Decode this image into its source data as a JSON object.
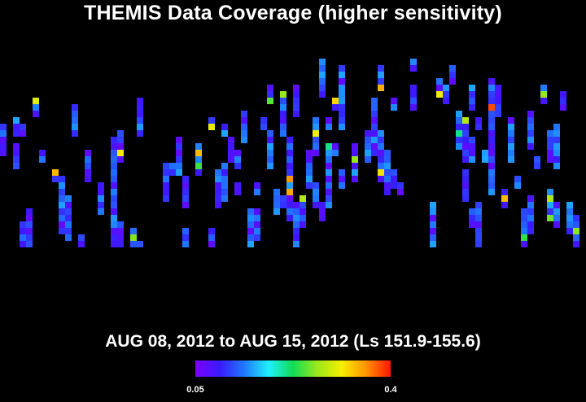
{
  "title": "THEMIS Data Coverage (higher sensitivity)",
  "subtitle": "AUG 08, 2012 to AUG 15, 2012 (Ls 151.9-155.6)",
  "colorbar": {
    "min_label": "0.05",
    "max_label": "0.4",
    "min": 0.05,
    "max": 0.4,
    "stops": [
      "#7d00ff",
      "#3a1aff",
      "#1f78ff",
      "#1ff0ff",
      "#11dd55",
      "#9be81b",
      "#f6f000",
      "#ff9200",
      "#ff1500"
    ]
  },
  "chart_data": {
    "type": "heatmap",
    "title": "THEMIS Data Coverage (higher sensitivity)",
    "subtitle": "AUG 08, 2012 to AUG 15, 2012 (Ls 151.9-155.6)",
    "value_range": [
      0.05,
      0.4
    ],
    "grid": false,
    "legend": "bottom-center colorbar"
  }
}
